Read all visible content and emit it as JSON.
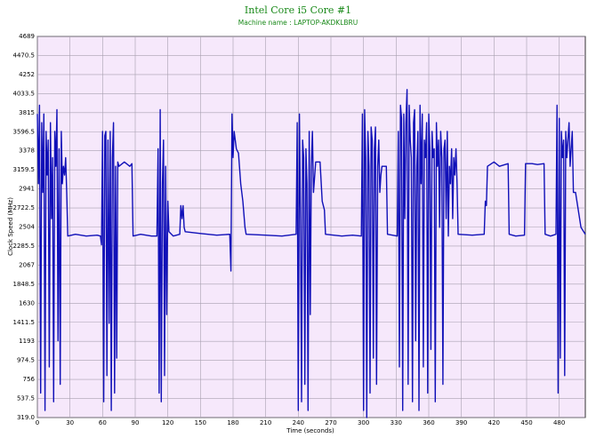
{
  "chart_data": {
    "type": "line",
    "title": "Intel Core i5 Core #1",
    "subtitle": "Machine name : LAPTOP-AKDKLBRU",
    "x_label": "Time (seconds)",
    "y_label": "Clock Speed (MHz)",
    "color": "#1010b8",
    "grid": true,
    "xlim": [
      0,
      504
    ],
    "xticks": [
      0,
      30,
      60,
      90,
      120,
      150,
      180,
      210,
      240,
      270,
      300,
      330,
      360,
      390,
      420,
      450,
      480
    ],
    "ylim": [
      319,
      4689
    ],
    "yticks": [
      {
        "value": 319,
        "label": "319.0"
      },
      537.5,
      756,
      {
        "value": 974.5,
        "label": "974.5"
      },
      1193,
      1411.5,
      1630,
      1848.5,
      2067,
      2285.5,
      2504,
      2722.5,
      2941,
      3159.5,
      3378,
      3596.5,
      3815,
      4033.5,
      4252,
      4470.5,
      4689
    ],
    "x": [
      0,
      1,
      2,
      3,
      4,
      5,
      6,
      7,
      8,
      9,
      10,
      11,
      12,
      13,
      14,
      15,
      16,
      17,
      18,
      19,
      20,
      21,
      22,
      23,
      24,
      25,
      26,
      27,
      28,
      35,
      45,
      55,
      58,
      59,
      60,
      61,
      62,
      63,
      64,
      65,
      66,
      67,
      68,
      69,
      70,
      71,
      72,
      73,
      74,
      75,
      80,
      85,
      87,
      88,
      95,
      105,
      110,
      111,
      112,
      113,
      114,
      115,
      116,
      117,
      118,
      119,
      120,
      121,
      125,
      131,
      132,
      133,
      134,
      135,
      136,
      150,
      165,
      177,
      178,
      179,
      180,
      181,
      183,
      185,
      187,
      189,
      191,
      192,
      210,
      225,
      238,
      239,
      240,
      241,
      242,
      243,
      244,
      245,
      246,
      247,
      248,
      249,
      250,
      251,
      252,
      253,
      254,
      256,
      260,
      262,
      264,
      265,
      280,
      290,
      298,
      299,
      300,
      301,
      302,
      303,
      304,
      305,
      306,
      307,
      308,
      309,
      310,
      311,
      312,
      313,
      314,
      315,
      316,
      317,
      321,
      322,
      331,
      332,
      333,
      334,
      335,
      336,
      337,
      338,
      339,
      340,
      341,
      342,
      343,
      344,
      345,
      346,
      347,
      348,
      349,
      350,
      351,
      352,
      353,
      354,
      355,
      356,
      357,
      358,
      359,
      360,
      361,
      362,
      363,
      364,
      365,
      366,
      367,
      368,
      369,
      370,
      371,
      372,
      373,
      374,
      375,
      376,
      377,
      378,
      379,
      380,
      381,
      382,
      383,
      384,
      385,
      386,
      387,
      400,
      411,
      412,
      413,
      414,
      420,
      425,
      433,
      434,
      440,
      448,
      449,
      455,
      460,
      466,
      467,
      472,
      477,
      478,
      479,
      480,
      481,
      482,
      483,
      484,
      485,
      486,
      487,
      488,
      489,
      490,
      491,
      492,
      493,
      495,
      500,
      504
    ],
    "values": [
      3800,
      3000,
      3900,
      600,
      3700,
      2900,
      3800,
      400,
      3600,
      3100,
      3500,
      900,
      3700,
      2600,
      3300,
      500,
      3600,
      3200,
      3850,
      1200,
      3400,
      700,
      3600,
      3000,
      3200,
      3100,
      3300,
      2900,
      2400,
      2420,
      2400,
      2410,
      2400,
      2300,
      3600,
      500,
      3550,
      3600,
      800,
      3500,
      1400,
      3600,
      400,
      3300,
      3700,
      600,
      3200,
      1000,
      3250,
      3200,
      3250,
      3200,
      3230,
      2400,
      2420,
      2400,
      2400,
      3400,
      600,
      3850,
      500,
      3000,
      3500,
      800,
      3200,
      1500,
      2800,
      2450,
      2400,
      2420,
      2750,
      2600,
      2750,
      2500,
      2450,
      2430,
      2410,
      2420,
      2000,
      3800,
      3300,
      3600,
      3400,
      3350,
      3000,
      2800,
      2500,
      2420,
      2410,
      2400,
      2420,
      3700,
      400,
      3800,
      2600,
      500,
      3500,
      3300,
      700,
      3400,
      3000,
      400,
      3600,
      1500,
      3200,
      3600,
      2900,
      3250,
      3250,
      2800,
      2700,
      2420,
      2400,
      2410,
      2400,
      3800,
      400,
      3850,
      3300,
      319,
      3600,
      3200,
      600,
      3650,
      3500,
      1000,
      3400,
      3650,
      700,
      3200,
      3500,
      2900,
      3100,
      3200,
      3200,
      2420,
      2400,
      3600,
      900,
      3900,
      3750,
      400,
      3800,
      2600,
      3700,
      4080,
      700,
      3900,
      3500,
      3300,
      500,
      3700,
      3850,
      1200,
      3200,
      3600,
      400,
      3900,
      3000,
      3800,
      900,
      3500,
      3300,
      3700,
      600,
      3800,
      3400,
      1100,
      3600,
      3300,
      3400,
      500,
      3700,
      3200,
      3500,
      2500,
      3600,
      3300,
      700,
      3400,
      3500,
      2600,
      3600,
      2400,
      3200,
      3000,
      3400,
      2600,
      3300,
      3100,
      3400,
      3000,
      2420,
      2410,
      2420,
      2800,
      2750,
      3200,
      3250,
      3200,
      3230,
      2420,
      2400,
      2410,
      3230,
      3230,
      3220,
      3230,
      2420,
      2400,
      2420,
      3900,
      600,
      3750,
      1000,
      3600,
      3300,
      3500,
      800,
      3600,
      3300,
      3500,
      3700,
      3200,
      3400,
      3600,
      2900,
      2900,
      2500,
      2420
    ]
  }
}
